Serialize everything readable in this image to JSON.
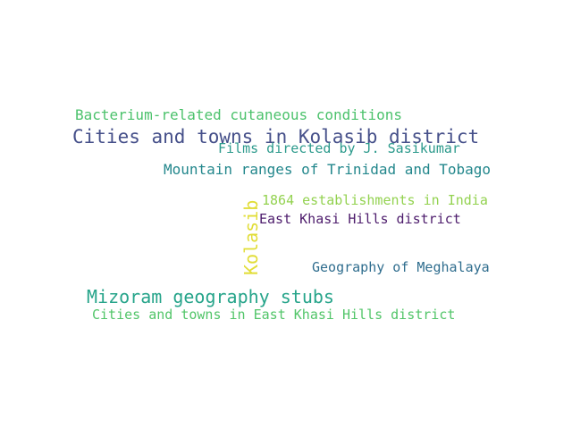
{
  "wordcloud": {
    "words": {
      "bacterium": "Bacterium-related cutaneous conditions",
      "kolasib_cities": "Cities and towns in Kolasib district",
      "films": "Films directed by J. Sasikumar",
      "mountain": "Mountain ranges of Trinidad and Tobago",
      "establishments": "1864 establishments in India",
      "east_khasi": "East Khasi Hills district",
      "kolasib": "Kolasib",
      "meghalaya": "Geography of Meghalaya",
      "mizoram": "Mizoram geography stubs",
      "khasi_cities": "Cities and towns in East Khasi Hills district"
    },
    "colors": {
      "background": "#ffffff",
      "palette": [
        "#4cc26c",
        "#46508a",
        "#2c9a8c",
        "#23878c",
        "#93d250",
        "#4d1c6c",
        "#2f6d8e",
        "#26a48a",
        "#52c569",
        "#e1dd37"
      ]
    }
  }
}
